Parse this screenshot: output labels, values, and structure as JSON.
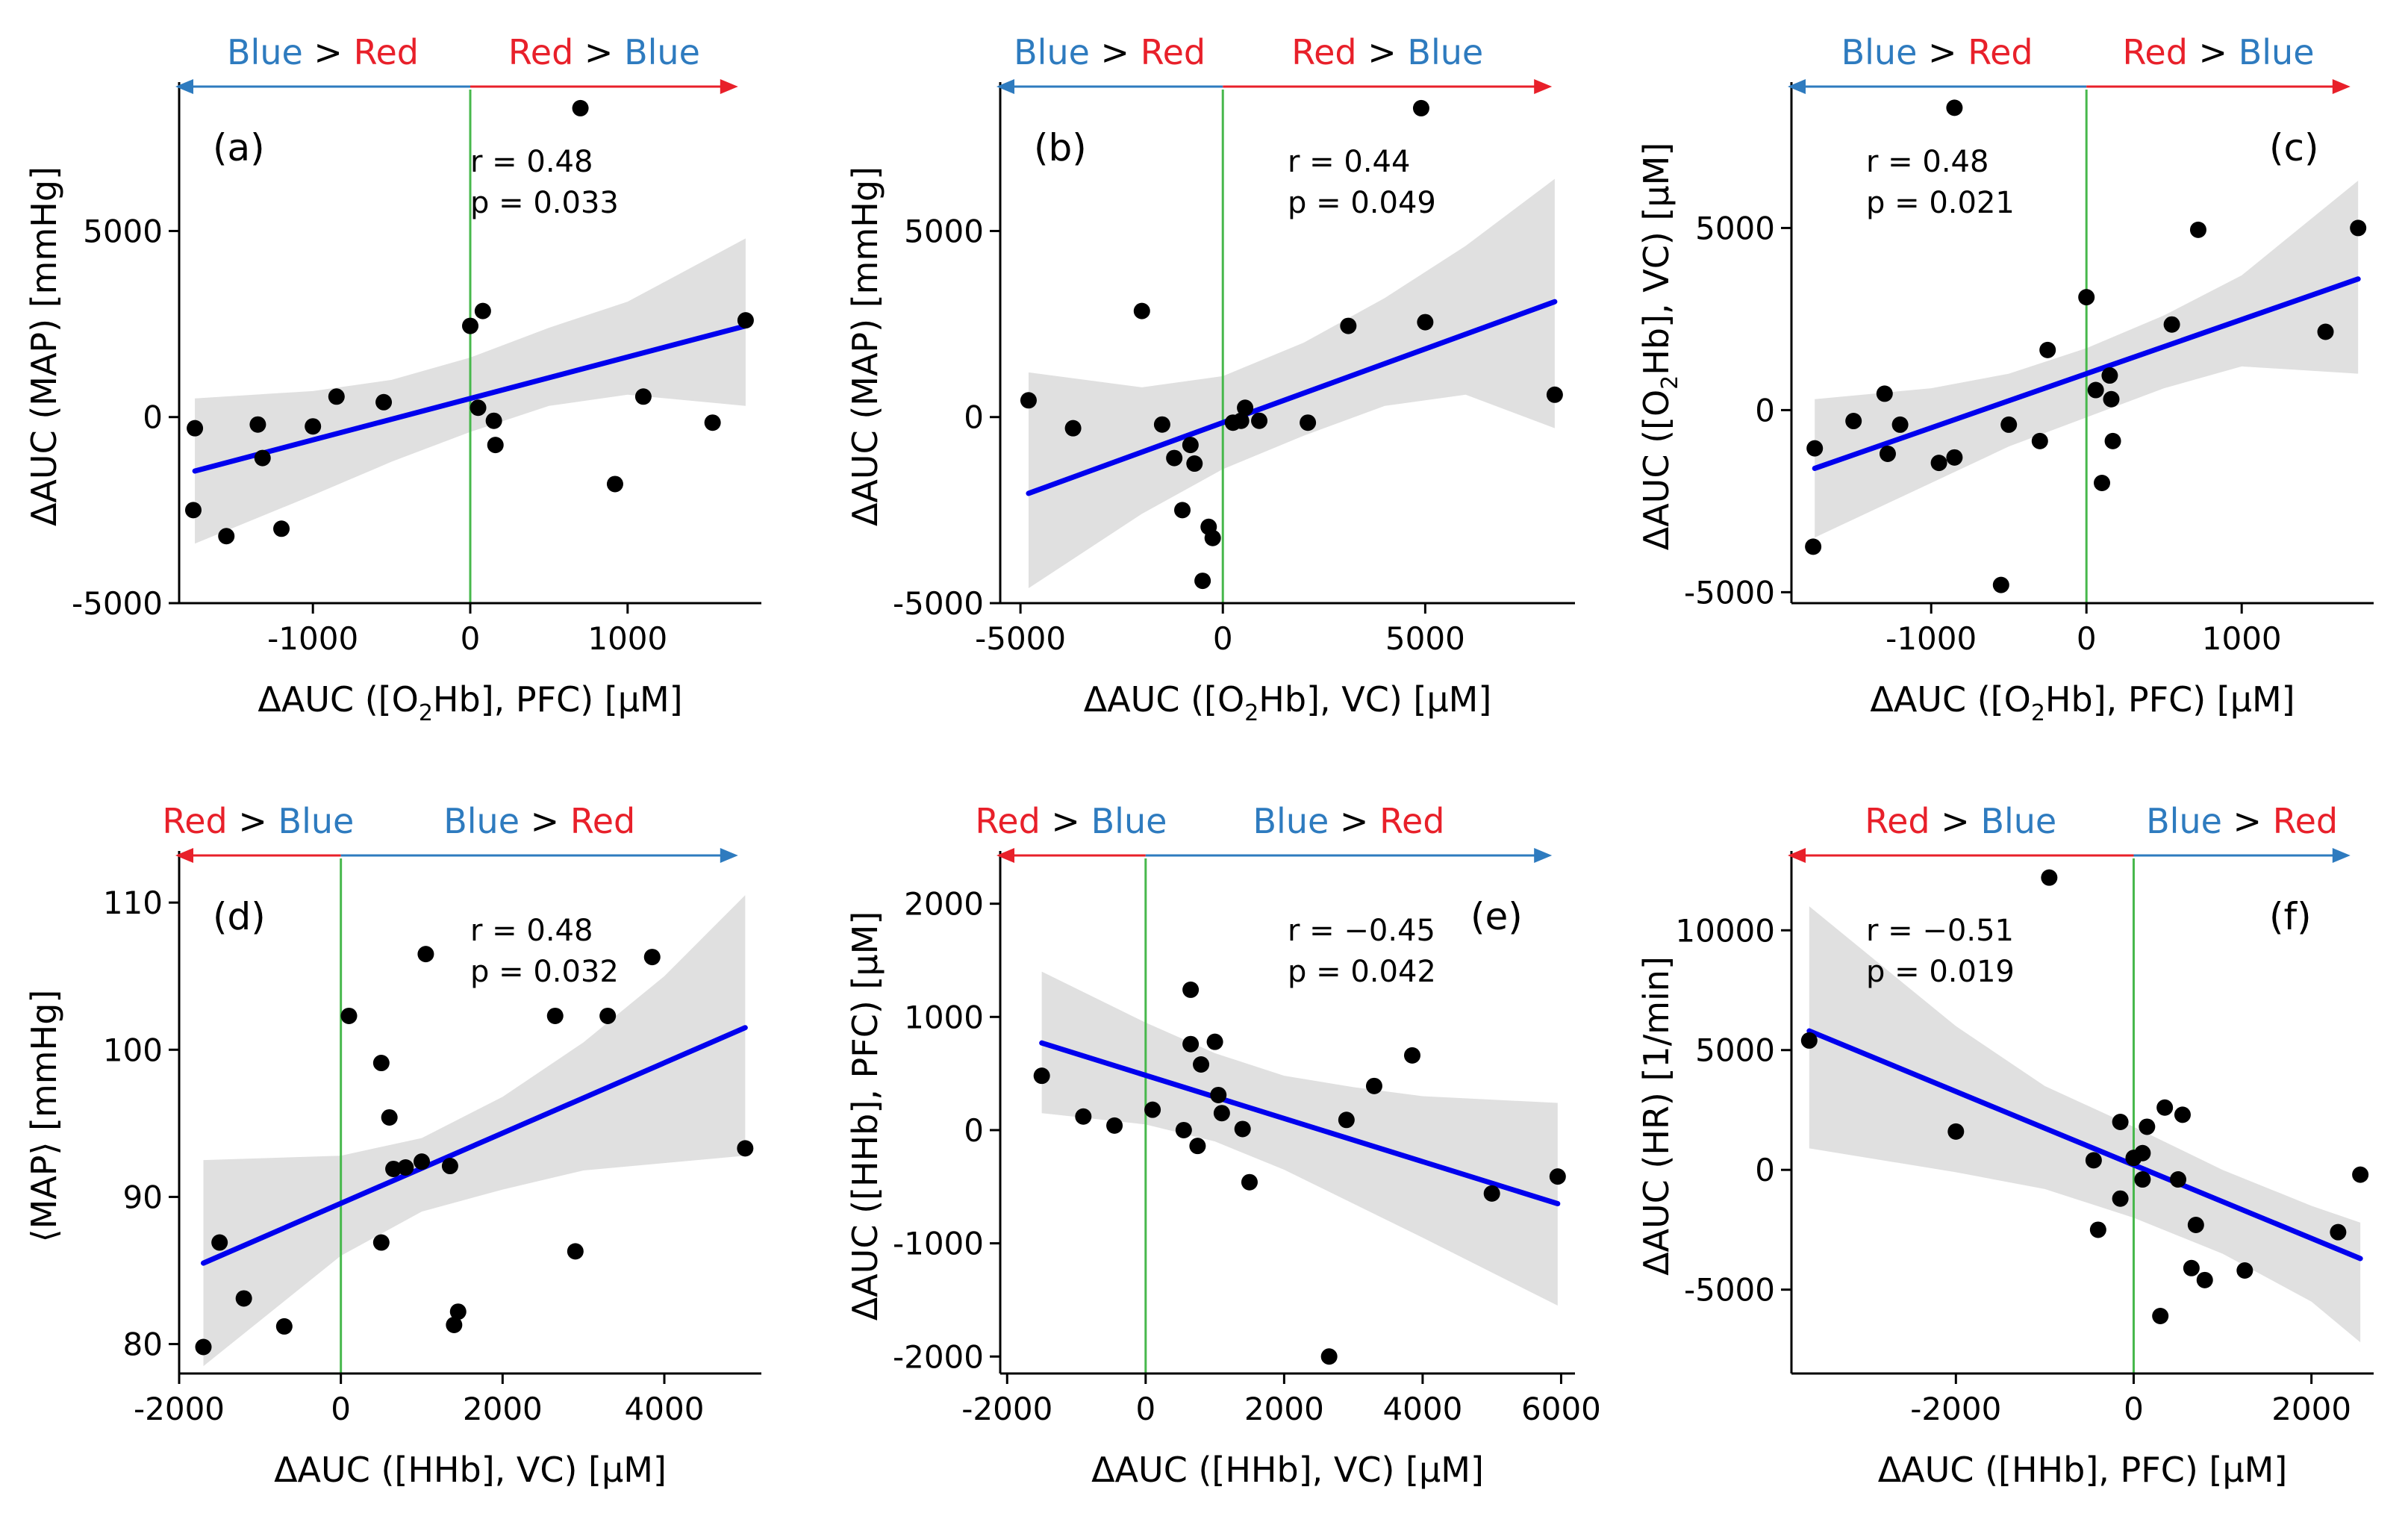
{
  "colors": {
    "blue_word": "#2e7bbf",
    "red_word": "#e8202a",
    "arrow_blue": "#2e7bbf",
    "arrow_red": "#e8202a",
    "fit_line": "#0000ee",
    "band": "#e0e0e0",
    "zero_line": "#47b84c",
    "points": "#000000"
  },
  "arrow_words": {
    "blue": "Blue",
    "red": "Red",
    "gt": ">"
  },
  "chart_data": [
    {
      "type": "scatter",
      "panel_label": "(a)",
      "xlabel": "ΔAUC ([O2Hb], PFC) [μM]",
      "ylabel": "ΔAUC (MAP) [mmHg]",
      "xlim": [
        -1850,
        1850
      ],
      "ylim": [
        -5000,
        8800
      ],
      "xticks": [
        -1000,
        0,
        1000
      ],
      "yticks": [
        -5000,
        0,
        5000
      ],
      "x_tick_labels": [
        "-1000",
        "0",
        "1000"
      ],
      "y_tick_labels": [
        "-5000",
        "0",
        "5000"
      ],
      "r_text": "r = 0.48",
      "p_text": "p = 0.033",
      "stats_position": "top-center",
      "left_arrow": "Blue > Red",
      "right_arrow": "Red > Blue",
      "left_first": "blue",
      "points": [
        [
          -1750,
          -300
        ],
        [
          -1760,
          -2500
        ],
        [
          -1550,
          -3200
        ],
        [
          -1350,
          -200
        ],
        [
          -1320,
          -1100
        ],
        [
          -1200,
          -3000
        ],
        [
          -1000,
          -250
        ],
        [
          -850,
          550
        ],
        [
          -550,
          400
        ],
        [
          0,
          2450
        ],
        [
          50,
          250
        ],
        [
          80,
          2850
        ],
        [
          150,
          -100
        ],
        [
          160,
          -750
        ],
        [
          700,
          8300
        ],
        [
          920,
          -1800
        ],
        [
          1100,
          550
        ],
        [
          1540,
          -150
        ],
        [
          1750,
          2600
        ]
      ],
      "fit": [
        [
          -1750,
          -1450
        ],
        [
          1750,
          2450
        ]
      ],
      "band_upper": [
        [
          -1750,
          500
        ],
        [
          -1000,
          700
        ],
        [
          -500,
          1000
        ],
        [
          0,
          1600
        ],
        [
          500,
          2400
        ],
        [
          1000,
          3100
        ],
        [
          1750,
          4800
        ]
      ],
      "band_lower": [
        [
          -1750,
          -3400
        ],
        [
          -1000,
          -2100
        ],
        [
          -500,
          -1200
        ],
        [
          0,
          -400
        ],
        [
          500,
          300
        ],
        [
          1000,
          600
        ],
        [
          1750,
          300
        ]
      ]
    },
    {
      "type": "scatter",
      "panel_label": "(b)",
      "xlabel": "ΔAUC ([O2Hb], VC) [μM]",
      "ylabel": "ΔAUC (MAP) [mmHg]",
      "xlim": [
        -5500,
        8700
      ],
      "ylim": [
        -5000,
        8800
      ],
      "xticks": [
        -5000,
        0,
        5000
      ],
      "yticks": [
        -5000,
        0,
        5000
      ],
      "x_tick_labels": [
        "-5000",
        "0",
        "5000"
      ],
      "y_tick_labels": [
        "-5000",
        "0",
        "5000"
      ],
      "r_text": "r = 0.44",
      "p_text": "p = 0.049",
      "stats_position": "top-center",
      "left_arrow": "Blue > Red",
      "right_arrow": "Red > Blue",
      "left_first": "blue",
      "points": [
        [
          -4800,
          450
        ],
        [
          -3700,
          -300
        ],
        [
          -2000,
          2850
        ],
        [
          -1500,
          -200
        ],
        [
          -1200,
          -1100
        ],
        [
          -1000,
          -2500
        ],
        [
          -800,
          -750
        ],
        [
          -700,
          -1250
        ],
        [
          -500,
          -4400
        ],
        [
          -350,
          -2950
        ],
        [
          -250,
          -3250
        ],
        [
          250,
          -150
        ],
        [
          450,
          -100
        ],
        [
          550,
          250
        ],
        [
          900,
          -100
        ],
        [
          2100,
          -150
        ],
        [
          3100,
          2450
        ],
        [
          5000,
          2550
        ],
        [
          4900,
          8300
        ],
        [
          8200,
          600
        ]
      ],
      "fit": [
        [
          -4800,
          -2050
        ],
        [
          8200,
          3100
        ]
      ],
      "band_upper": [
        [
          -4800,
          1200
        ],
        [
          -2000,
          800
        ],
        [
          0,
          1100
        ],
        [
          2000,
          2000
        ],
        [
          4000,
          3200
        ],
        [
          6000,
          4600
        ],
        [
          8200,
          6400
        ]
      ],
      "band_lower": [
        [
          -4800,
          -4600
        ],
        [
          -2000,
          -2600
        ],
        [
          0,
          -1400
        ],
        [
          2000,
          -500
        ],
        [
          4000,
          300
        ],
        [
          6000,
          600
        ],
        [
          8200,
          -300
        ]
      ]
    },
    {
      "type": "scatter",
      "panel_label": "(c)",
      "xlabel": "ΔAUC ([O2Hb], PFC) [μM]",
      "ylabel": "ΔAUC ([O2Hb], VC) [μM]",
      "xlim": [
        -1900,
        1850
      ],
      "ylim": [
        -5300,
        8800
      ],
      "xticks": [
        -1000,
        0,
        1000
      ],
      "yticks": [
        -5000,
        0,
        5000
      ],
      "x_tick_labels": [
        "-1000",
        "0",
        "1000"
      ],
      "y_tick_labels": [
        "-5000",
        "0",
        "5000"
      ],
      "r_text": "r = 0.48",
      "p_text": "p = 0.021",
      "stats_position": "top-left",
      "left_arrow": "Blue > Red",
      "right_arrow": "Red > Blue",
      "left_first": "blue",
      "points": [
        [
          -1750,
          -1050
        ],
        [
          -1760,
          -3750
        ],
        [
          -1500,
          -300
        ],
        [
          -1300,
          450
        ],
        [
          -1280,
          -1200
        ],
        [
          -1200,
          -400
        ],
        [
          -950,
          -1450
        ],
        [
          -850,
          -1300
        ],
        [
          -850,
          8300
        ],
        [
          -550,
          -4800
        ],
        [
          -500,
          -400
        ],
        [
          -300,
          -850
        ],
        [
          -250,
          1650
        ],
        [
          0,
          3100
        ],
        [
          60,
          550
        ],
        [
          100,
          -2000
        ],
        [
          150,
          950
        ],
        [
          160,
          300
        ],
        [
          170,
          -850
        ],
        [
          550,
          2350
        ],
        [
          720,
          4950
        ],
        [
          1540,
          2150
        ],
        [
          1750,
          5000
        ]
      ],
      "fit": [
        [
          -1750,
          -1600
        ],
        [
          1750,
          3600
        ]
      ],
      "band_upper": [
        [
          -1750,
          300
        ],
        [
          -1000,
          600
        ],
        [
          -500,
          1000
        ],
        [
          0,
          1700
        ],
        [
          500,
          2600
        ],
        [
          1000,
          3700
        ],
        [
          1750,
          6300
        ]
      ],
      "band_lower": [
        [
          -1750,
          -3500
        ],
        [
          -1000,
          -2000
        ],
        [
          -500,
          -1000
        ],
        [
          0,
          -200
        ],
        [
          500,
          600
        ],
        [
          1000,
          1200
        ],
        [
          1750,
          1000
        ]
      ]
    },
    {
      "type": "scatter",
      "panel_label": "(d)",
      "xlabel": "ΔAUC ([HHb], VC) [μM]",
      "ylabel": "⟨MAP⟩ [mmHg]",
      "xlim": [
        -2000,
        5200
      ],
      "ylim": [
        78,
        113
      ],
      "xticks": [
        -2000,
        0,
        2000,
        4000
      ],
      "yticks": [
        80,
        90,
        100,
        110
      ],
      "x_tick_labels": [
        "-2000",
        "0",
        "2000",
        "4000"
      ],
      "y_tick_labels": [
        "80",
        "90",
        "100",
        "110"
      ],
      "r_text": "r = 0.48",
      "p_text": "p = 0.032",
      "stats_position": "top-center",
      "left_arrow": "Red > Blue",
      "right_arrow": "Blue > Red",
      "left_first": "red",
      "points": [
        [
          -1700,
          79.8
        ],
        [
          -1500,
          86.9
        ],
        [
          -1200,
          83.1
        ],
        [
          -700,
          81.2
        ],
        [
          100,
          102.3
        ],
        [
          500,
          99.1
        ],
        [
          500,
          86.9
        ],
        [
          600,
          95.4
        ],
        [
          650,
          91.9
        ],
        [
          800,
          92.0
        ],
        [
          1000,
          92.4
        ],
        [
          1050,
          106.5
        ],
        [
          1350,
          92.1
        ],
        [
          1400,
          81.3
        ],
        [
          1450,
          82.2
        ],
        [
          2650,
          102.3
        ],
        [
          2900,
          86.3
        ],
        [
          3300,
          102.3
        ],
        [
          3850,
          106.3
        ],
        [
          5000,
          93.3
        ]
      ],
      "fit": [
        [
          -1700,
          85.5
        ],
        [
          5000,
          101.5
        ]
      ],
      "band_upper": [
        [
          -1700,
          92.5
        ],
        [
          0,
          92.8
        ],
        [
          1000,
          94.0
        ],
        [
          2000,
          96.8
        ],
        [
          3000,
          100.5
        ],
        [
          4000,
          105.0
        ],
        [
          5000,
          110.5
        ]
      ],
      "band_lower": [
        [
          -1700,
          78.5
        ],
        [
          0,
          86.0
        ],
        [
          1000,
          89.0
        ],
        [
          2000,
          90.5
        ],
        [
          3000,
          91.8
        ],
        [
          4000,
          92.3
        ],
        [
          5000,
          92.8
        ]
      ]
    },
    {
      "type": "scatter",
      "panel_label": "(e)",
      "xlabel": "ΔAUC ([HHb], VC) [μM]",
      "ylabel": "ΔAUC ([HHb], PFC) [μM]",
      "xlim": [
        -2100,
        6200
      ],
      "ylim": [
        -2150,
        2400
      ],
      "xticks": [
        -2000,
        0,
        2000,
        4000,
        6000
      ],
      "yticks": [
        -2000,
        -1000,
        0,
        1000,
        2000
      ],
      "x_tick_labels": [
        "-2000",
        "0",
        "2000",
        "4000",
        "6000"
      ],
      "y_tick_labels": [
        "-2000",
        "-1000",
        "0",
        "1000",
        "2000"
      ],
      "r_text": "r = −0.45",
      "p_text": "p = 0.042",
      "stats_position": "top-center",
      "left_arrow": "Red > Blue",
      "right_arrow": "Blue > Red",
      "left_first": "red",
      "points": [
        [
          -1500,
          480
        ],
        [
          -900,
          120
        ],
        [
          -450,
          40
        ],
        [
          100,
          180
        ],
        [
          550,
          0
        ],
        [
          650,
          1240
        ],
        [
          650,
          760
        ],
        [
          750,
          -140
        ],
        [
          800,
          580
        ],
        [
          1000,
          780
        ],
        [
          1050,
          310
        ],
        [
          1100,
          150
        ],
        [
          1400,
          10
        ],
        [
          1500,
          -460
        ],
        [
          2650,
          -2000
        ],
        [
          2900,
          90
        ],
        [
          3300,
          390
        ],
        [
          3850,
          660
        ],
        [
          5000,
          -560
        ],
        [
          5950,
          -410
        ]
      ],
      "fit": [
        [
          -1500,
          770
        ],
        [
          5950,
          -650
        ]
      ],
      "band_upper": [
        [
          -1500,
          1400
        ],
        [
          0,
          950
        ],
        [
          1000,
          680
        ],
        [
          2000,
          480
        ],
        [
          3000,
          380
        ],
        [
          4000,
          300
        ],
        [
          5950,
          240
        ]
      ],
      "band_lower": [
        [
          -1500,
          150
        ],
        [
          0,
          50
        ],
        [
          1000,
          -100
        ],
        [
          2000,
          -350
        ],
        [
          3000,
          -650
        ],
        [
          4000,
          -950
        ],
        [
          5950,
          -1550
        ]
      ]
    },
    {
      "type": "scatter",
      "panel_label": "(f)",
      "xlabel": "ΔAUC ([HHb], PFC) [μM]",
      "ylabel": "ΔAUC (HR) [1/min]",
      "xlim": [
        -3850,
        2700
      ],
      "ylim": [
        -8500,
        13000
      ],
      "xticks": [
        -2000,
        0,
        2000
      ],
      "yticks": [
        -5000,
        0,
        5000,
        10000
      ],
      "x_tick_labels": [
        "-2000",
        "0",
        "2000"
      ],
      "y_tick_labels": [
        "-5000",
        "0",
        "5000",
        "10000"
      ],
      "r_text": "r = −0.51",
      "p_text": "p = 0.019",
      "stats_position": "top-left",
      "left_arrow": "Red > Blue",
      "right_arrow": "Blue > Red",
      "left_first": "red",
      "points": [
        [
          -3650,
          5400
        ],
        [
          -2000,
          1600
        ],
        [
          -950,
          12200
        ],
        [
          -450,
          400
        ],
        [
          -400,
          -2500
        ],
        [
          -150,
          2000
        ],
        [
          -150,
          -1200
        ],
        [
          0,
          500
        ],
        [
          100,
          -400
        ],
        [
          100,
          700
        ],
        [
          150,
          1800
        ],
        [
          300,
          -6100
        ],
        [
          350,
          2600
        ],
        [
          500,
          -400
        ],
        [
          550,
          2300
        ],
        [
          650,
          -4100
        ],
        [
          700,
          -2300
        ],
        [
          800,
          -4600
        ],
        [
          1250,
          -4200
        ],
        [
          2300,
          -2600
        ],
        [
          2550,
          -200
        ]
      ],
      "fit": [
        [
          -3650,
          5800
        ],
        [
          2550,
          -3700
        ]
      ],
      "band_upper": [
        [
          -3650,
          11000
        ],
        [
          -2000,
          6000
        ],
        [
          -1000,
          3500
        ],
        [
          0,
          1800
        ],
        [
          1000,
          0
        ],
        [
          2000,
          -1500
        ],
        [
          2550,
          -2200
        ]
      ],
      "band_lower": [
        [
          -3650,
          900
        ],
        [
          -2000,
          -100
        ],
        [
          -1000,
          -800
        ],
        [
          0,
          -2000
        ],
        [
          1000,
          -3500
        ],
        [
          2000,
          -5500
        ],
        [
          2550,
          -7200
        ]
      ]
    }
  ]
}
